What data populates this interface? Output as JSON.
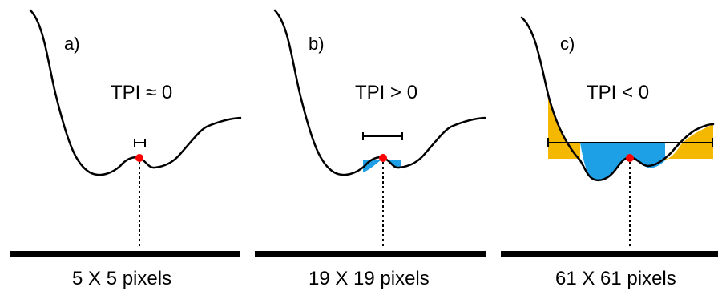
{
  "panels": [
    {
      "id": "a",
      "label": "a)",
      "tpi": "TPI ≈ 0",
      "window": "5 X 5 pixels"
    },
    {
      "id": "b",
      "label": "b)",
      "tpi": "TPI > 0",
      "window": "19 X 19 pixels"
    },
    {
      "id": "c",
      "label": "c)",
      "tpi": "TPI < 0",
      "window": "61 X 61 pixels"
    }
  ],
  "colors": {
    "terrain_line": "#000000",
    "point": "#ff0000",
    "below_fill": "#1ea0e6",
    "above_fill": "#f5b800"
  }
}
